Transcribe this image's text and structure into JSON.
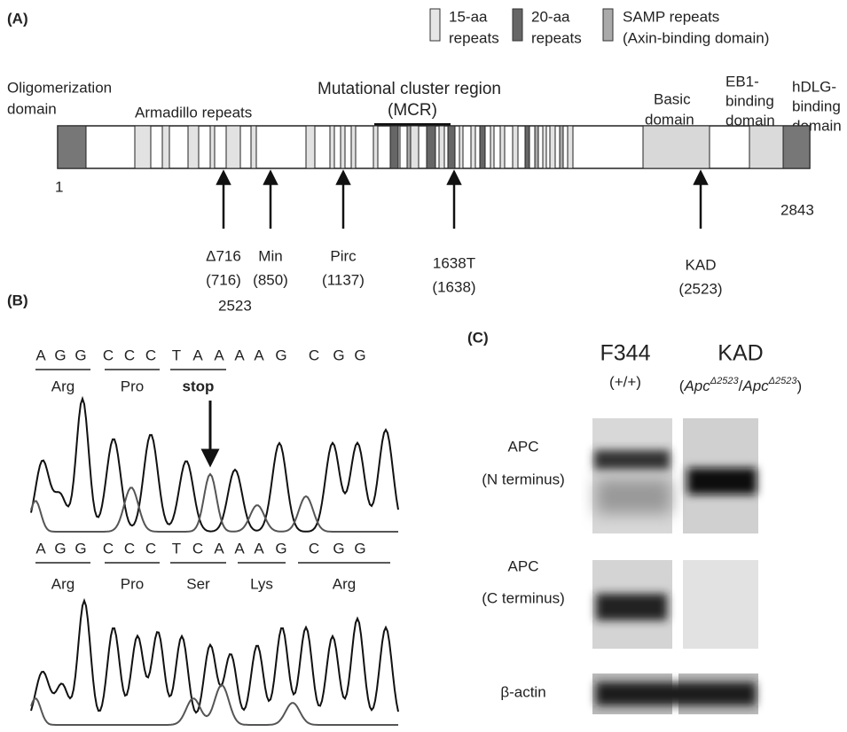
{
  "panel_a": {
    "label": "(A)",
    "legend": [
      {
        "lines": [
          "15-aa",
          "repeats"
        ]
      },
      {
        "lines": [
          "20-aa",
          "repeats"
        ]
      },
      {
        "lines": [
          "SAMP repeats",
          "(Axin-binding domain)"
        ]
      }
    ],
    "domains": [
      {
        "lines": [
          "Oligomerization",
          "domain"
        ]
      },
      {
        "lines": [
          "Armadillo repeats"
        ]
      },
      {
        "lines": [
          "Mutational cluster region",
          "(MCR)"
        ]
      },
      {
        "lines": [
          "Basic",
          "domain"
        ]
      },
      {
        "lines": [
          "EB1-",
          "binding",
          "domain"
        ]
      },
      {
        "lines": [
          "hDLG-",
          "binding",
          "domain"
        ]
      }
    ],
    "start": "1",
    "end": "2843",
    "mutations": [
      {
        "name": "Δ716",
        "position": "(716)"
      },
      {
        "name": "Min",
        "position": "(850)"
      },
      {
        "name": "Pirc",
        "position": "(1137)"
      },
      {
        "name": "1638T",
        "position": "(1638)"
      },
      {
        "name": "KAD",
        "position": "(2523)"
      }
    ]
  },
  "panel_b": {
    "label": "(B)",
    "site": "2523",
    "mutant": {
      "bases": [
        "A",
        "G",
        "G",
        "C",
        "C",
        "C",
        "T",
        "A",
        "A",
        "A",
        "A",
        "G",
        "C",
        "G",
        "G"
      ],
      "codons": [
        "Arg",
        "Pro",
        "stop"
      ]
    },
    "wildtype": {
      "bases": [
        "A",
        "G",
        "G",
        "C",
        "C",
        "C",
        "T",
        "C",
        "A",
        "A",
        "A",
        "G",
        "C",
        "G",
        "G"
      ],
      "codons": [
        "Arg",
        "Pro",
        "Ser",
        "Lys",
        "Arg"
      ]
    }
  },
  "panel_c": {
    "label": "(C)",
    "lanes": [
      {
        "name": "F344",
        "genotype": [
          "(+/+)"
        ]
      },
      {
        "name": "KAD",
        "genotype": [
          "(",
          "Apc",
          "Δ2523",
          "/",
          "Apc",
          "Δ2523",
          ")"
        ]
      }
    ],
    "rows": [
      {
        "lines": [
          "APC",
          "(N terminus)"
        ]
      },
      {
        "lines": [
          "APC",
          "(C terminus)"
        ]
      },
      {
        "lines": [
          "β-actin"
        ]
      }
    ]
  }
}
